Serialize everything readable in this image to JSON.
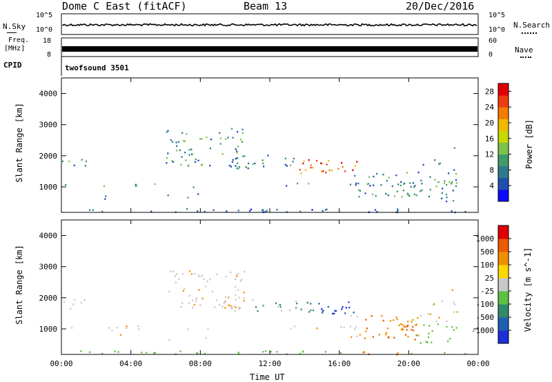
{
  "header": {
    "station": "Dome C East (fitACF)",
    "beam": "Beam 13",
    "date": "20/Dec/2016"
  },
  "top_panels": {
    "nsky_label": "N.Sky",
    "nsearch_label": "N.Search",
    "noise_tick_high": "10^5",
    "noise_tick_low": "10^0",
    "freq_label_1": "Freq.",
    "freq_label_2": "[MHz]",
    "freq_tick_high": "18",
    "freq_tick_low": "8",
    "nave_label": "Nave",
    "nave_tick_high": "60",
    "nave_tick_low": "0",
    "cpid_label": "CPID",
    "cpid_value": "twofsound 3501"
  },
  "chart_data": [
    {
      "type": "heatmap",
      "name": "power",
      "ylabel": "Slant Range [km]",
      "xlabel": "",
      "ylim": [
        180,
        4500
      ],
      "y_ticks": [
        "4000",
        "3000",
        "2000",
        "1000"
      ],
      "colorbar_label": "Power [dB]",
      "colorbar_ticks": [
        "28",
        "24",
        "20",
        "16",
        "12",
        "8",
        "4"
      ],
      "colorbar_colors": [
        "#0a0aff",
        "#1f4fb0",
        "#2b7a8e",
        "#3f9a6a",
        "#7dc24a",
        "#c8d800",
        "#f2b800",
        "#f57c00",
        "#ee3b10",
        "#e00000"
      ],
      "colorbar_range": [
        0,
        30
      ]
    },
    {
      "type": "heatmap",
      "name": "velocity",
      "ylabel": "Slant Range [km]",
      "xlabel": "Time UT",
      "ylim": [
        180,
        4500
      ],
      "x_ticks": [
        "00:00",
        "04:00",
        "08:00",
        "12:00",
        "16:00",
        "20:00",
        "00:00"
      ],
      "y_ticks": [
        "4000",
        "3000",
        "2000",
        "1000"
      ],
      "colorbar_label": "Velocity [m s^-1]",
      "colorbar_ticks": [
        "1000",
        "500",
        "100",
        "25",
        "-25",
        "-100",
        "-500",
        "-1000"
      ],
      "colorbar_colors": [
        "#1a2fd8",
        "#1f5fb0",
        "#2e8a6a",
        "#5cc040",
        "#c8c8c8",
        "#ffd800",
        "#f09000",
        "#ee5a00",
        "#e00000"
      ]
    }
  ]
}
